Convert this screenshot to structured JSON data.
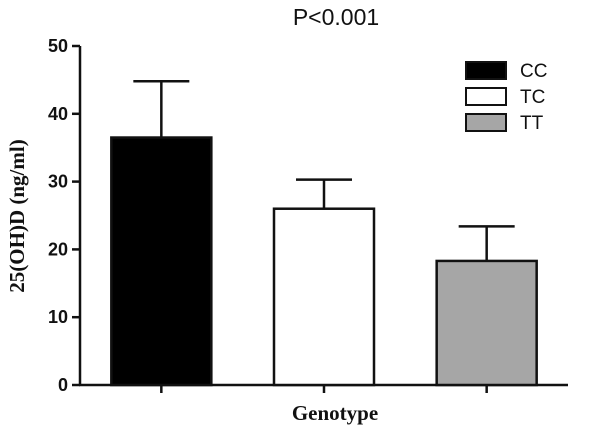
{
  "chart_data": {
    "type": "bar",
    "title": "P<0.001",
    "xlabel": "Genotype",
    "ylabel": "25(OH)D (ng/ml)",
    "categories": [
      "CC",
      "TC",
      "TT"
    ],
    "values": [
      36.5,
      26.0,
      18.3
    ],
    "error_upper": [
      8.3,
      4.3,
      5.1
    ],
    "colors": [
      "#000000",
      "#ffffff",
      "#a6a6a6"
    ],
    "ylim": [
      0,
      50
    ],
    "yticks": [
      "0",
      "10",
      "20",
      "30",
      "40",
      "50"
    ],
    "legend": {
      "position": "top-right",
      "entries": [
        "CC",
        "TC",
        "TT"
      ]
    },
    "grid": false
  }
}
